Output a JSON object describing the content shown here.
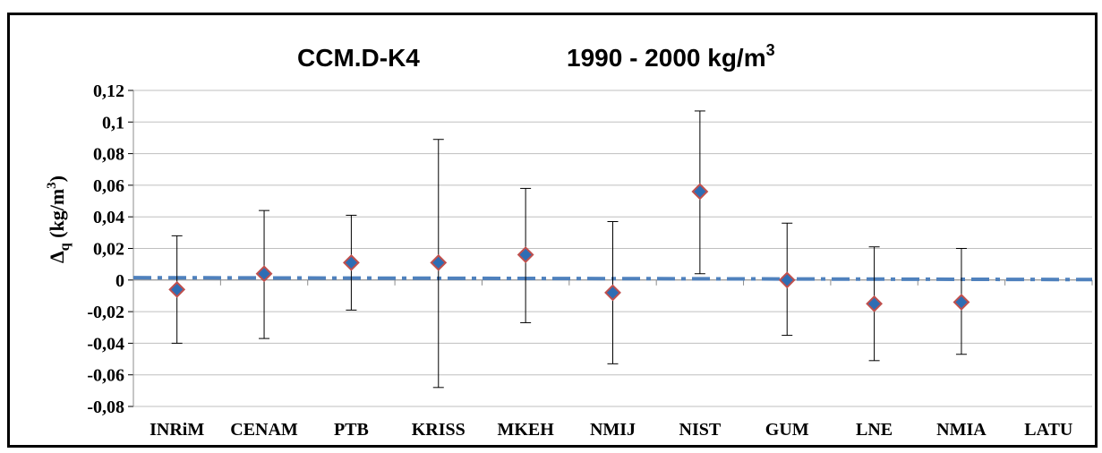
{
  "chart_data": {
    "type": "scatter",
    "title": "CCM.D-K4",
    "subtitle": "1990 - 2000  kg/m",
    "subtitle_superscript": "3",
    "ylabel": "Δ",
    "ylabel_subscript": "q",
    "ylabel_unit": " (kg/m",
    "ylabel_unit_sup": "3",
    "ylabel_unit_end": ")",
    "ylim": [
      -0.08,
      0.12
    ],
    "ytick_step": 0.02,
    "ytick_labels": [
      "-0,08",
      "-0,06",
      "-0,04",
      "-0,02",
      "0",
      "0,02",
      "0,04",
      "0,06",
      "0,08",
      "0,1",
      "0,12"
    ],
    "categories": [
      "INRiM",
      "CENAM",
      "PTB",
      "KRISS",
      "MKEH",
      "NMIJ",
      "NIST",
      "GUM",
      "LNE",
      "NMIA",
      "LATU"
    ],
    "values": [
      -0.006,
      0.004,
      0.011,
      0.011,
      0.016,
      -0.008,
      0.056,
      0.0,
      -0.015,
      -0.014,
      null
    ],
    "error_low": [
      -0.04,
      -0.037,
      -0.019,
      -0.068,
      -0.027,
      -0.053,
      0.004,
      -0.035,
      -0.051,
      -0.047,
      null
    ],
    "error_high": [
      0.028,
      0.044,
      0.041,
      0.089,
      0.058,
      0.037,
      0.107,
      0.036,
      0.021,
      0.02,
      null
    ],
    "reference_line": {
      "start": 0.0015,
      "end": 0.0003
    },
    "grid": true,
    "legend": "none",
    "colors": {
      "marker_fill": "#2e6db4",
      "marker_edge": "#c0504d",
      "reference": "#4f81bd",
      "grid": "#bfbfbf"
    }
  }
}
